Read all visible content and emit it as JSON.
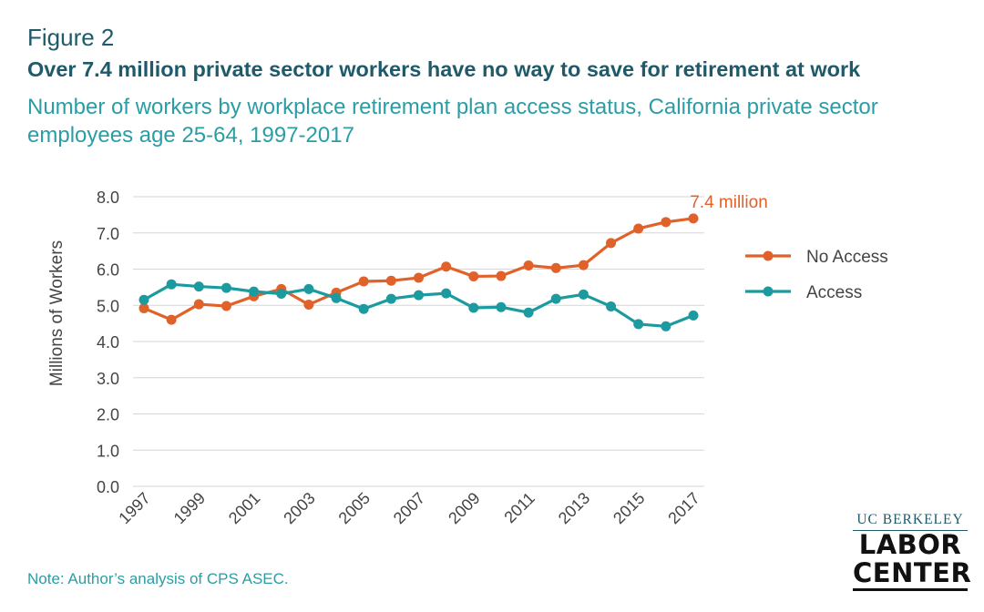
{
  "figure_label": "Figure 2",
  "title": "Over 7.4 million private sector workers have no way to save for retirement at work",
  "subtitle": "Number of workers by workplace retirement plan access status, California private sector employees age 25-64, 1997-2017",
  "note": "Note: Author’s analysis of CPS ASEC.",
  "logo": {
    "top": "UC BERKELEY",
    "middle": "LABOR",
    "bottom": "CENTER"
  },
  "chart_data": {
    "type": "line",
    "ylabel": "Millions of Workers",
    "xlabel": "",
    "ylim": [
      0,
      8
    ],
    "y_ticks": [
      "0.0",
      "1.0",
      "2.0",
      "3.0",
      "4.0",
      "5.0",
      "6.0",
      "7.0",
      "8.0"
    ],
    "x": [
      1997,
      1998,
      1999,
      2000,
      2001,
      2002,
      2003,
      2004,
      2005,
      2006,
      2007,
      2008,
      2009,
      2010,
      2011,
      2012,
      2013,
      2014,
      2015,
      2016,
      2017
    ],
    "x_tick_labels": [
      "1997",
      "1999",
      "2001",
      "2003",
      "2005",
      "2007",
      "2009",
      "2011",
      "2013",
      "2015",
      "2017"
    ],
    "grid": "horizontal",
    "legend_position": "right",
    "series": [
      {
        "name": "No Access",
        "color": "#e0622a",
        "values": [
          4.92,
          4.6,
          5.03,
          4.98,
          5.25,
          5.45,
          5.02,
          5.35,
          5.66,
          5.68,
          5.76,
          6.07,
          5.8,
          5.81,
          6.1,
          6.03,
          6.11,
          6.72,
          7.12,
          7.3,
          7.4
        ]
      },
      {
        "name": "Access",
        "color": "#1b9aa0",
        "values": [
          5.15,
          5.58,
          5.52,
          5.48,
          5.38,
          5.32,
          5.45,
          5.2,
          4.9,
          5.18,
          5.28,
          5.33,
          4.93,
          4.95,
          4.8,
          5.18,
          5.3,
          4.97,
          4.48,
          4.42,
          4.72
        ]
      }
    ],
    "annotations": [
      {
        "text": "7.4 million",
        "series": "No Access",
        "x": 2017,
        "color": "#e0622a"
      }
    ]
  }
}
